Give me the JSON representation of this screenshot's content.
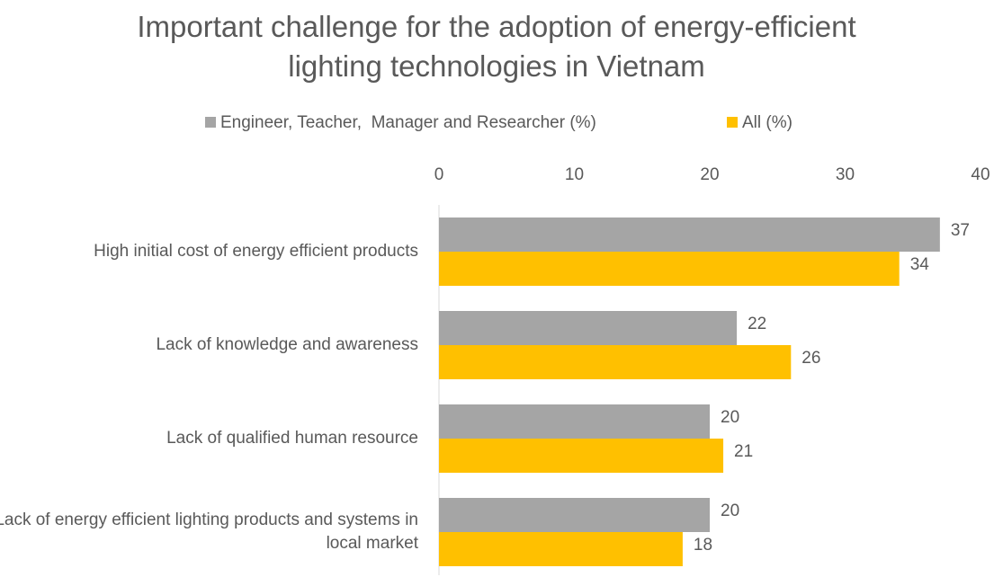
{
  "chart_data": {
    "type": "barh",
    "title": "Important challenge for the adoption of energy-efficient lighting technologies in Vietnam",
    "categories": [
      "High initial cost of energy efficient products",
      "Lack of knowledge and awareness",
      "Lack of qualified human resource",
      "Lack of energy efficient lighting products and systems in local market"
    ],
    "series": [
      {
        "name": "Engineer, Teacher,  Manager and Researcher (%)",
        "color": "#a5a5a5",
        "values": [
          37,
          22,
          20,
          20
        ]
      },
      {
        "name": "All (%)",
        "color": "#ffc000",
        "values": [
          34,
          26,
          21,
          18
        ]
      }
    ],
    "xlim": [
      0,
      40
    ],
    "xticks": [
      0,
      10,
      20,
      30,
      40
    ],
    "grid": false,
    "legend": "top"
  }
}
